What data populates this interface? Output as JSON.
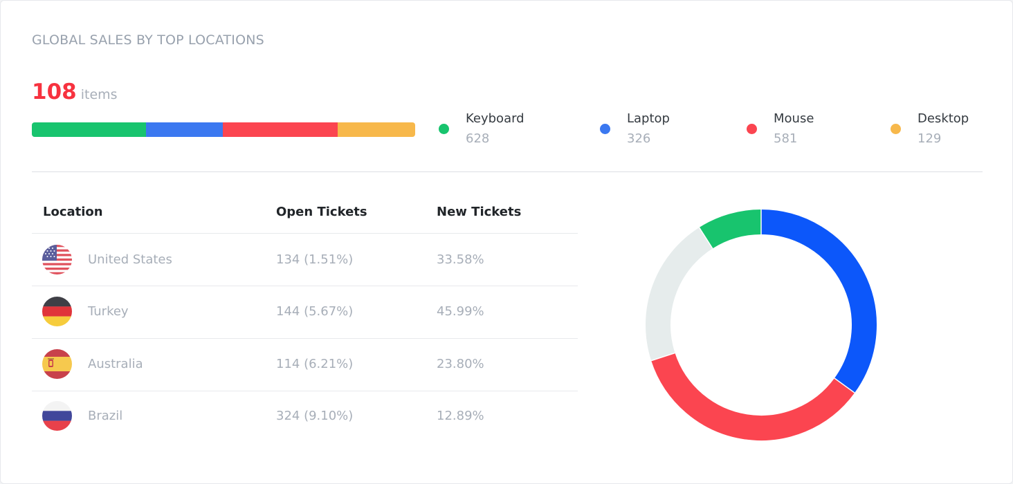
{
  "widget": {
    "title": "GLOBAL SALES BY TOP LOCATIONS",
    "total_value": "108",
    "total_unit": "items"
  },
  "colors": {
    "accent_red": "#f7323f",
    "keyboard": "#18c46e",
    "laptop": "#3b78f0",
    "mouse": "#fb4550",
    "desktop": "#f7b84b",
    "donut_blue": "#0c57fa",
    "donut_track": "#e6ecec"
  },
  "products": [
    {
      "name": "Keyboard",
      "value": "628",
      "color_key": "keyboard"
    },
    {
      "name": "Laptop",
      "value": "326",
      "color_key": "laptop"
    },
    {
      "name": "Mouse",
      "value": "581",
      "color_key": "mouse"
    },
    {
      "name": "Desktop",
      "value": "129",
      "color_key": "desktop"
    }
  ],
  "progress_shares_percent": [
    29.8,
    20.0,
    30.0,
    20.2
  ],
  "table": {
    "headers": {
      "location": "Location",
      "open_tickets": "Open Tickets",
      "new_tickets": "New Tickets"
    },
    "rows": [
      {
        "location": "United States",
        "open_tickets": "134 (1.51%)",
        "new_tickets": "33.58%",
        "flag_icon": "us-flag-icon"
      },
      {
        "location": "Turkey",
        "open_tickets": "144 (5.67%)",
        "new_tickets": "45.99%",
        "flag_icon": "germany-flag-icon"
      },
      {
        "location": "Australia",
        "open_tickets": "114 (6.21%)",
        "new_tickets": "23.80%",
        "flag_icon": "spain-flag-icon"
      },
      {
        "location": "Brazil",
        "open_tickets": "324 (9.10%)",
        "new_tickets": "12.89%",
        "flag_icon": "russia-flag-icon"
      }
    ]
  },
  "chart_data": {
    "type": "pie",
    "style": "donut",
    "slices_percent": [
      {
        "color": "#0c57fa",
        "value": 35
      },
      {
        "color": "#fb4550",
        "value": 35
      },
      {
        "color": "#e6ecec",
        "value": 21
      },
      {
        "color": "#18c46e",
        "value": 9
      }
    ],
    "start": "top",
    "direction": "clockwise"
  }
}
